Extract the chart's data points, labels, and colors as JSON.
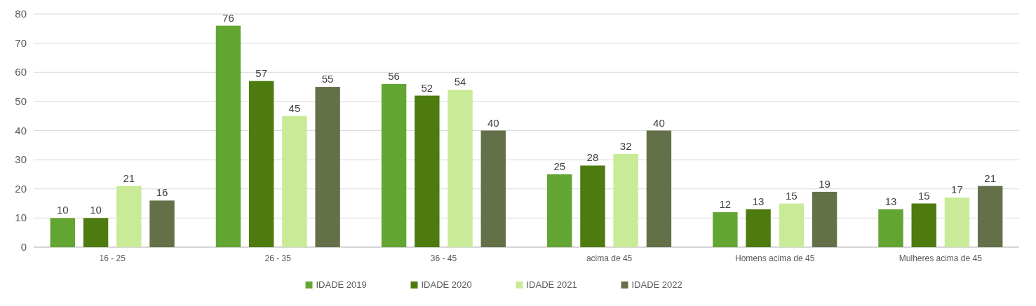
{
  "chart_data": {
    "type": "bar",
    "categories": [
      "16 - 25",
      "26 - 35",
      "36 - 45",
      "acima de 45",
      "Homens acima de 45",
      "Mulheres acima de 45"
    ],
    "series": [
      {
        "name": "IDADE 2019",
        "color": "#63a532",
        "values": [
          10,
          76,
          56,
          25,
          12,
          13
        ]
      },
      {
        "name": "IDADE 2020",
        "color": "#4d7b0f",
        "values": [
          10,
          57,
          52,
          28,
          13,
          15
        ]
      },
      {
        "name": "IDADE 2021",
        "color": "#c9eb97",
        "values": [
          21,
          45,
          54,
          32,
          15,
          17
        ]
      },
      {
        "name": "IDADE 2022",
        "color": "#647148",
        "values": [
          16,
          55,
          40,
          40,
          19,
          21
        ]
      }
    ],
    "ylim": [
      0,
      80
    ],
    "yticks": [
      0,
      10,
      20,
      30,
      40,
      50,
      60,
      70,
      80
    ],
    "grid": "y",
    "legend": "bottom",
    "data_labels": true
  }
}
